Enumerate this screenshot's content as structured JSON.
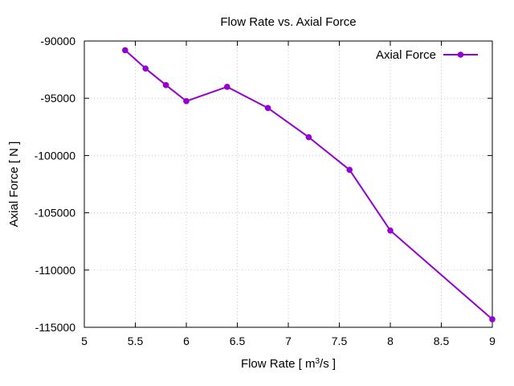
{
  "chart_data": {
    "type": "line",
    "title": "Flow Rate vs. Axial Force",
    "xlabel": "Flow Rate [ m³/s ]",
    "xlabel_parts": {
      "prefix": "Flow Rate [ m",
      "sup": "3",
      "suffix": "/s ]"
    },
    "ylabel": "Axial Force [ N ]",
    "xlim": [
      5,
      9
    ],
    "ylim": [
      -115000,
      -90000
    ],
    "xticks": [
      5,
      5.5,
      6,
      6.5,
      7,
      7.5,
      8,
      8.5,
      9
    ],
    "xtick_labels": [
      "5",
      "5.5",
      "6",
      "6.5",
      "7",
      "7.5",
      "8",
      "8.5",
      "9"
    ],
    "yticks": [
      -90000,
      -95000,
      -100000,
      -105000,
      -110000,
      -115000
    ],
    "ytick_labels": [
      "-90000",
      "-95000",
      "-100000",
      "-105000",
      "-110000",
      "-115000"
    ],
    "grid": true,
    "legend_position": "top-right",
    "series": [
      {
        "name": "Axial Force",
        "color": "#9400d3",
        "x": [
          5.4,
          5.6,
          5.8,
          6.0,
          6.4,
          6.8,
          7.2,
          7.6,
          8.0,
          9.0
        ],
        "y": [
          -90800,
          -92400,
          -93850,
          -95250,
          -94000,
          -95850,
          -98400,
          -101250,
          -106550,
          -114300
        ]
      }
    ]
  }
}
